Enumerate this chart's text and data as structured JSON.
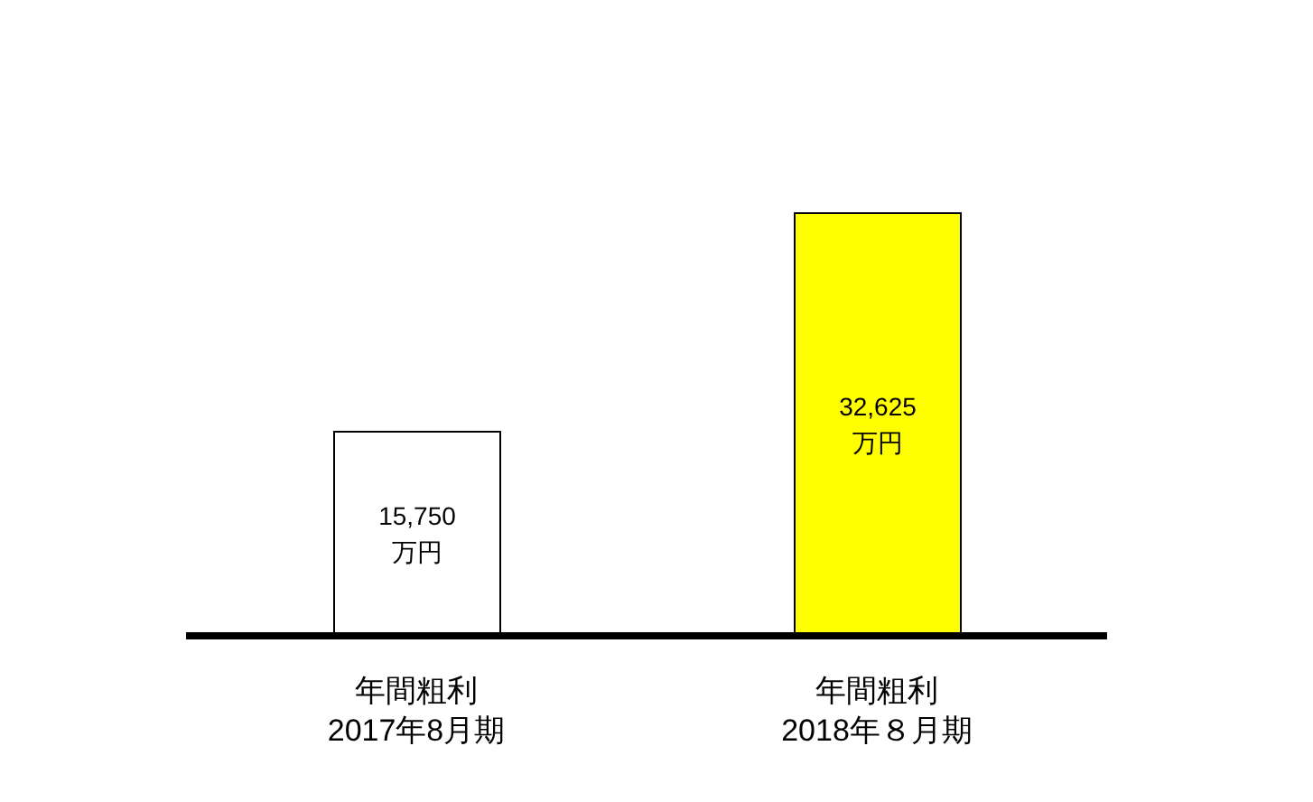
{
  "chart_data": {
    "type": "bar",
    "categories": [
      "年間粗利\n2017年8月期",
      "年間粗利\n2018年８月期"
    ],
    "values": [
      15750,
      32625
    ],
    "colors": [
      "#ffffff",
      "#ffff00"
    ],
    "value_labels": [
      "15,750\n万円",
      "32,625\n万円"
    ]
  }
}
